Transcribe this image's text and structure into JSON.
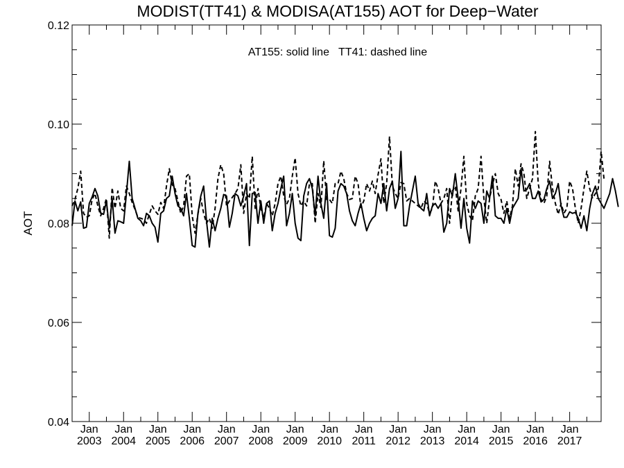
{
  "chart_data": {
    "type": "line",
    "title": "MODIST(TT41) & MODISA(AT155)  AOT for Deep−Water",
    "annotation": "AT155: solid line   TT41: dashed line",
    "xlabel": "",
    "ylabel": "AOT",
    "ylim": [
      0.04,
      0.12
    ],
    "yticks": [
      0.04,
      0.06,
      0.08,
      0.1,
      0.12
    ],
    "ytick_labels": [
      "0.04",
      "0.06",
      "0.08",
      "0.10",
      "0.12"
    ],
    "xlim": [
      "2002-07",
      "2017-12"
    ],
    "xticks": [
      {
        "month": "Jan",
        "year": "2003",
        "date": "2003-01"
      },
      {
        "month": "Jan",
        "year": "2004",
        "date": "2004-01"
      },
      {
        "month": "Jan",
        "year": "2005",
        "date": "2005-01"
      },
      {
        "month": "Jan",
        "year": "2006",
        "date": "2006-01"
      },
      {
        "month": "Jan",
        "year": "2007",
        "date": "2007-01"
      },
      {
        "month": "Jan",
        "year": "2008",
        "date": "2008-01"
      },
      {
        "month": "Jan",
        "year": "2009",
        "date": "2009-01"
      },
      {
        "month": "Jan",
        "year": "2010",
        "date": "2010-01"
      },
      {
        "month": "Jan",
        "year": "2011",
        "date": "2011-01"
      },
      {
        "month": "Jan",
        "year": "2012",
        "date": "2012-01"
      },
      {
        "month": "Jan",
        "year": "2013",
        "date": "2013-01"
      },
      {
        "month": "Jan",
        "year": "2014",
        "date": "2014-01"
      },
      {
        "month": "Jan",
        "year": "2015",
        "date": "2015-01"
      },
      {
        "month": "Jan",
        "year": "2016",
        "date": "2016-01"
      },
      {
        "month": "Jan",
        "year": "2017",
        "date": "2017-01"
      }
    ],
    "grid": false,
    "legend": "none",
    "line_color": "#000000",
    "series": [
      {
        "name": "AT155",
        "style": "solid",
        "start": "2002-07",
        "values": [
          0.0795,
          0.0845,
          0.0825,
          0.0843,
          0.079,
          0.0792,
          0.084,
          0.0853,
          0.087,
          0.0855,
          0.082,
          0.0818,
          0.0845,
          0.079,
          0.085,
          0.078,
          0.0805,
          0.0803,
          0.08,
          0.086,
          0.0925,
          0.085,
          0.083,
          0.081,
          0.0805,
          0.0795,
          0.082,
          0.0815,
          0.08,
          0.0792,
          0.0762,
          0.082,
          0.0825,
          0.085,
          0.0855,
          0.0895,
          0.086,
          0.0835,
          0.083,
          0.0815,
          0.086,
          0.081,
          0.0755,
          0.0752,
          0.082,
          0.0855,
          0.0875,
          0.0805,
          0.0752,
          0.081,
          0.0785,
          0.081,
          0.083,
          0.0858,
          0.0855,
          0.0792,
          0.082,
          0.086,
          0.0855,
          0.0835,
          0.0855,
          0.088,
          0.0755,
          0.086,
          0.0862,
          0.08,
          0.0845,
          0.08,
          0.084,
          0.0845,
          0.0785,
          0.082,
          0.084,
          0.087,
          0.0895,
          0.0795,
          0.082,
          0.086,
          0.08,
          0.077,
          0.0765,
          0.0855,
          0.088,
          0.089,
          0.087,
          0.0815,
          0.0895,
          0.084,
          0.081,
          0.088,
          0.0775,
          0.0772,
          0.079,
          0.0865,
          0.088,
          0.0875,
          0.086,
          0.0825,
          0.0805,
          0.0795,
          0.082,
          0.084,
          0.081,
          0.0785,
          0.08,
          0.081,
          0.0815,
          0.086,
          0.084,
          0.088,
          0.0825,
          0.087,
          0.0885,
          0.083,
          0.085,
          0.0945,
          0.0795,
          0.0795,
          0.0835,
          0.0865,
          0.0895,
          0.084,
          0.083,
          0.0825,
          0.086,
          0.0815,
          0.0835,
          0.084,
          0.083,
          0.084,
          0.0782,
          0.08,
          0.087,
          0.0855,
          0.09,
          0.085,
          0.079,
          0.085,
          0.079,
          0.076,
          0.0845,
          0.083,
          0.0845,
          0.084,
          0.08,
          0.0865,
          0.085,
          0.0895,
          0.0815,
          0.081,
          0.081,
          0.08,
          0.083,
          0.08,
          0.083,
          0.084,
          0.085,
          0.091,
          0.0865,
          0.0868,
          0.088,
          0.085,
          0.085,
          0.0865,
          0.0843,
          0.0848,
          0.087,
          0.0885,
          0.085,
          0.086,
          0.088,
          0.0835,
          0.0812,
          0.0812,
          0.0823,
          0.082,
          0.0822,
          0.081,
          0.079,
          0.0815,
          0.0785,
          0.083,
          0.086,
          0.0875,
          0.085,
          0.084,
          0.083,
          0.0845,
          0.086,
          0.089,
          0.0865,
          0.0833
        ]
      },
      {
        "name": "TT41",
        "style": "dashed",
        "start": "2002-07",
        "values": [
          0.0835,
          0.0848,
          0.087,
          0.0905,
          0.082,
          0.0812,
          0.0815,
          0.0848,
          0.086,
          0.0835,
          0.0815,
          0.083,
          0.085,
          0.077,
          0.0872,
          0.083,
          0.0865,
          0.083,
          0.0825,
          0.0875,
          0.086,
          0.0842,
          0.0828,
          0.0812,
          0.081,
          0.0808,
          0.08,
          0.0818,
          0.0835,
          0.0825,
          0.0818,
          0.0842,
          0.083,
          0.0875,
          0.091,
          0.0878,
          0.087,
          0.0845,
          0.082,
          0.0835,
          0.0895,
          0.09,
          0.0815,
          0.078,
          0.0818,
          0.085,
          0.082,
          0.08,
          0.081,
          0.079,
          0.083,
          0.089,
          0.0918,
          0.09,
          0.0835,
          0.0845,
          0.0852,
          0.086,
          0.087,
          0.0918,
          0.082,
          0.086,
          0.085,
          0.0935,
          0.083,
          0.087,
          0.083,
          0.081,
          0.084,
          0.083,
          0.0815,
          0.084,
          0.088,
          0.0895,
          0.0855,
          0.0838,
          0.085,
          0.0895,
          0.0932,
          0.086,
          0.0835,
          0.0845,
          0.0835,
          0.088,
          0.088,
          0.08,
          0.086,
          0.0832,
          0.0926,
          0.0848,
          0.0848,
          0.084,
          0.088,
          0.088,
          0.0905,
          0.089,
          0.086,
          0.0848,
          0.085,
          0.0895,
          0.088,
          0.0832,
          0.0845,
          0.088,
          0.0865,
          0.0885,
          0.086,
          0.0898,
          0.093,
          0.084,
          0.088,
          0.0975,
          0.0875,
          0.086,
          0.085,
          0.0882,
          0.088,
          0.0845,
          0.085,
          0.0845,
          0.084,
          0.0835,
          0.083,
          0.0845,
          0.084,
          0.082,
          0.083,
          0.0885,
          0.087,
          0.084,
          0.085,
          0.087,
          0.08,
          0.0865,
          0.0875,
          0.0825,
          0.087,
          0.0935,
          0.084,
          0.0815,
          0.0805,
          0.0855,
          0.087,
          0.0935,
          0.085,
          0.08,
          0.085,
          0.0878,
          0.09,
          0.086,
          0.0848,
          0.082,
          0.0845,
          0.081,
          0.0835,
          0.091,
          0.0875,
          0.092,
          0.09,
          0.085,
          0.087,
          0.089,
          0.0985,
          0.088,
          0.0848,
          0.084,
          0.0855,
          0.0925,
          0.087,
          0.084,
          0.0818,
          0.084,
          0.082,
          0.083,
          0.0885,
          0.087,
          0.083,
          0.08,
          0.083,
          0.087,
          0.0905,
          0.087,
          0.085,
          0.086,
          0.087,
          0.0945,
          0.089
        ]
      }
    ]
  }
}
